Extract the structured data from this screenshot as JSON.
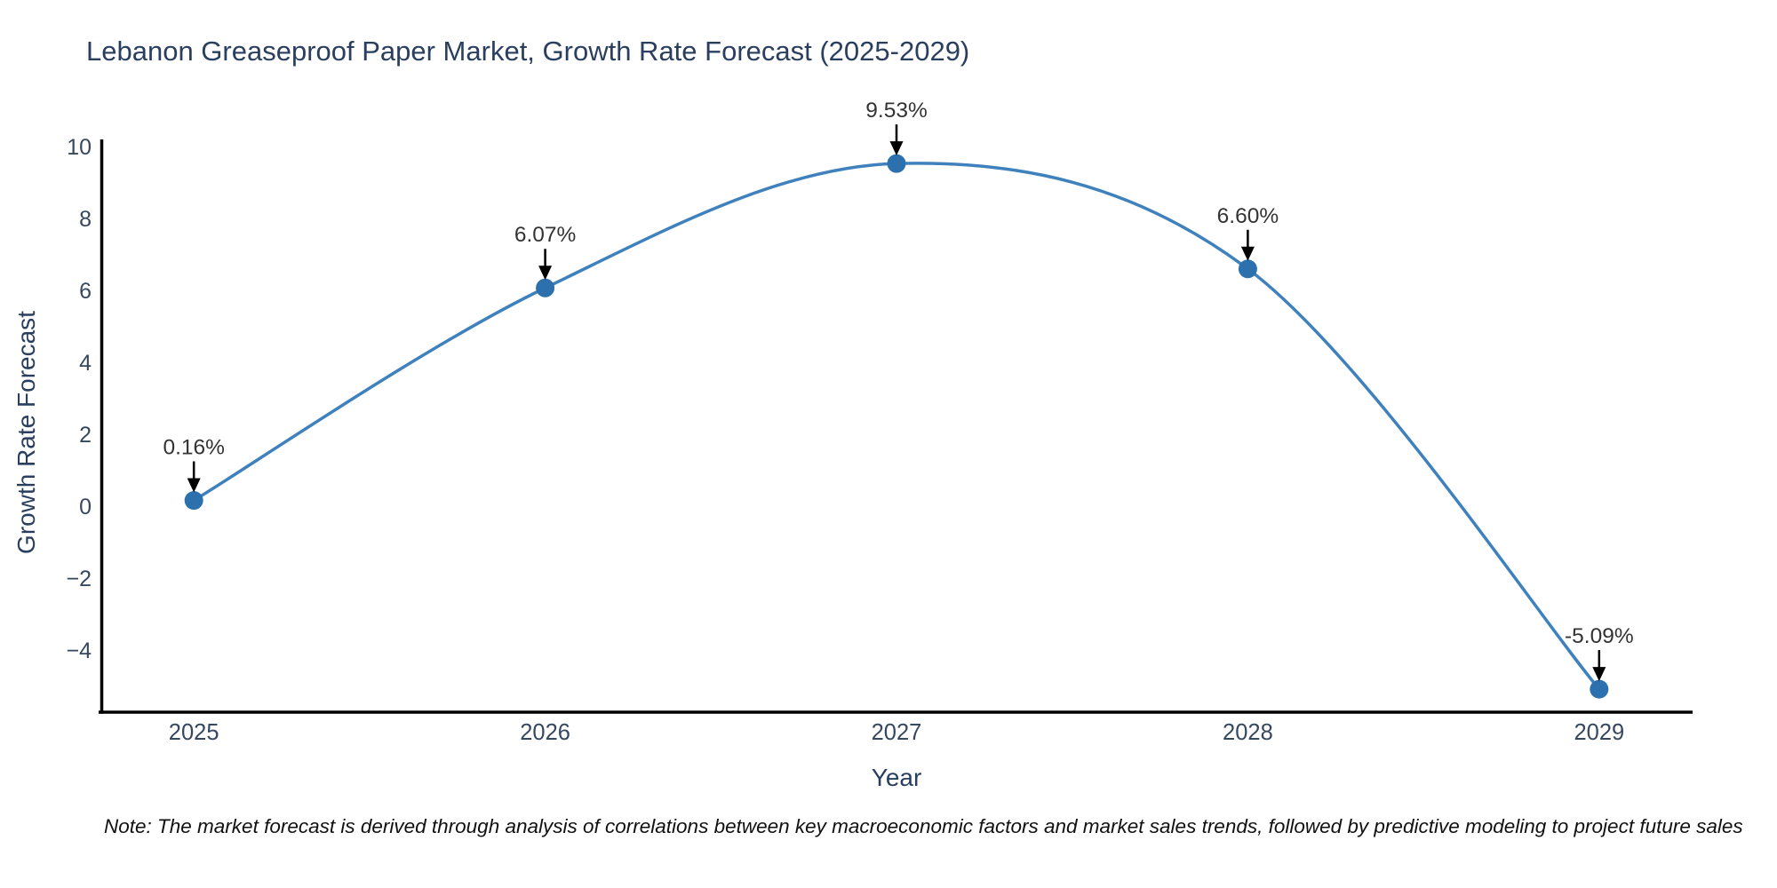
{
  "chart": {
    "title": "Lebanon Greaseproof Paper Market, Growth Rate Forecast (2025-2029)",
    "xlabel": "Year",
    "ylabel": "Growth Rate Forecast",
    "note": "Note: The market forecast is derived through analysis of correlations between key macroeconomic factors and market sales trends, followed by predictive modeling to project future sales"
  },
  "chart_data": {
    "type": "line",
    "line_shape": "spline",
    "title": "Lebanon Greaseproof Paper Market, Growth Rate Forecast (2025-2029)",
    "xlabel": "Year",
    "ylabel": "Growth Rate Forecast",
    "x": [
      2025,
      2026,
      2027,
      2028,
      2029
    ],
    "values": [
      0.16,
      6.07,
      9.53,
      6.6,
      -5.09
    ],
    "point_labels": [
      "0.16%",
      "6.07%",
      "9.53%",
      "6.60%",
      "-5.09%"
    ],
    "x_ticks": [
      "2025",
      "2026",
      "2027",
      "2028",
      "2029"
    ],
    "y_ticks": [
      -4,
      -2,
      0,
      2,
      4,
      6,
      8,
      10
    ],
    "xlim": [
      2024.734,
      2029.266
    ],
    "ylim": [
      -5.73,
      10.25
    ],
    "grid": false,
    "legend_position": "none",
    "annotations_arrow": true
  },
  "colors": {
    "background": "#ffffff",
    "title_text": "#2a3f5f",
    "axis_text": "#2a3f5f",
    "tick_text": "#364860",
    "axis_line": "#000000",
    "line": "#3f81bd",
    "marker": "#2c71ad",
    "annotation_text": "#333333",
    "arrow": "#000000"
  }
}
